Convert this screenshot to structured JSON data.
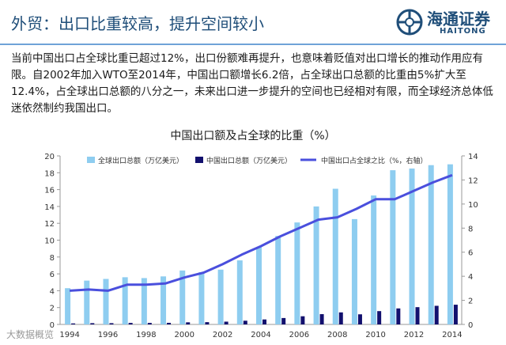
{
  "slide": {
    "title": "外贸：出口比重较高，提升空间较小",
    "logo_cn": "海通证券",
    "logo_en": "HAITONG",
    "body_text": "当前中国出口占全球比重已超过12%，出口份额难再提升，也意味着贬值对出口增长的推动作用应有限。自2002年加入WTO至2014年，中国出口额增长6.2倍，占全球出口总额的比重由5%扩大至12.4%，占全球出口总额的八分之一，未来出口进一步提升的空间也已经相对有限，而全球经济总体低迷依然制约我国出口。",
    "watermark": "大数据概览",
    "colors": {
      "title": "#1f4e79",
      "rule": "#6fa3d8",
      "global_bar": "#8ecdf0",
      "china_bar": "#12106e",
      "share_line": "#4a4fdd"
    }
  },
  "chart_data": {
    "type": "bar",
    "title": "中国出口额及占全球的比重（%）",
    "x": [
      1994,
      1995,
      1996,
      1997,
      1998,
      1999,
      2000,
      2001,
      2002,
      2003,
      2004,
      2005,
      2006,
      2007,
      2008,
      2009,
      2010,
      2011,
      2012,
      2013,
      2014
    ],
    "x_tick_labels": [
      "1994",
      "1996",
      "1998",
      "2000",
      "2002",
      "2004",
      "2006",
      "2008",
      "2010",
      "2012",
      "2014"
    ],
    "series": [
      {
        "name": "全球出口总额（万亿美元）",
        "type": "bar",
        "axis": "left",
        "values": [
          4.3,
          5.2,
          5.4,
          5.6,
          5.5,
          5.7,
          6.4,
          6.2,
          6.5,
          7.6,
          9.2,
          10.5,
          12.1,
          14.0,
          16.1,
          12.5,
          15.3,
          18.3,
          18.5,
          18.9,
          19.0
        ]
      },
      {
        "name": "中国出口总额（万亿美元）",
        "type": "bar",
        "axis": "left",
        "values": [
          0.12,
          0.15,
          0.15,
          0.18,
          0.18,
          0.19,
          0.25,
          0.27,
          0.33,
          0.44,
          0.59,
          0.76,
          0.97,
          1.22,
          1.43,
          1.2,
          1.58,
          1.9,
          2.05,
          2.21,
          2.34
        ]
      },
      {
        "name": "中国出口占全球之比（%，右轴）",
        "type": "line",
        "axis": "right",
        "values": [
          2.8,
          2.9,
          2.8,
          3.3,
          3.3,
          3.4,
          3.9,
          4.3,
          5.0,
          5.8,
          6.5,
          7.3,
          8.0,
          8.7,
          8.9,
          9.6,
          10.4,
          10.4,
          11.1,
          11.8,
          12.4
        ]
      }
    ],
    "ylim": [
      0,
      20
    ],
    "y_ticks": [
      0,
      2,
      4,
      6,
      8,
      10,
      12,
      14,
      16,
      18,
      20
    ],
    "y2lim": [
      0,
      14
    ],
    "y2_ticks": [
      0,
      2,
      4,
      6,
      8,
      10,
      12,
      14
    ],
    "grid": false,
    "legend_position": "top"
  }
}
